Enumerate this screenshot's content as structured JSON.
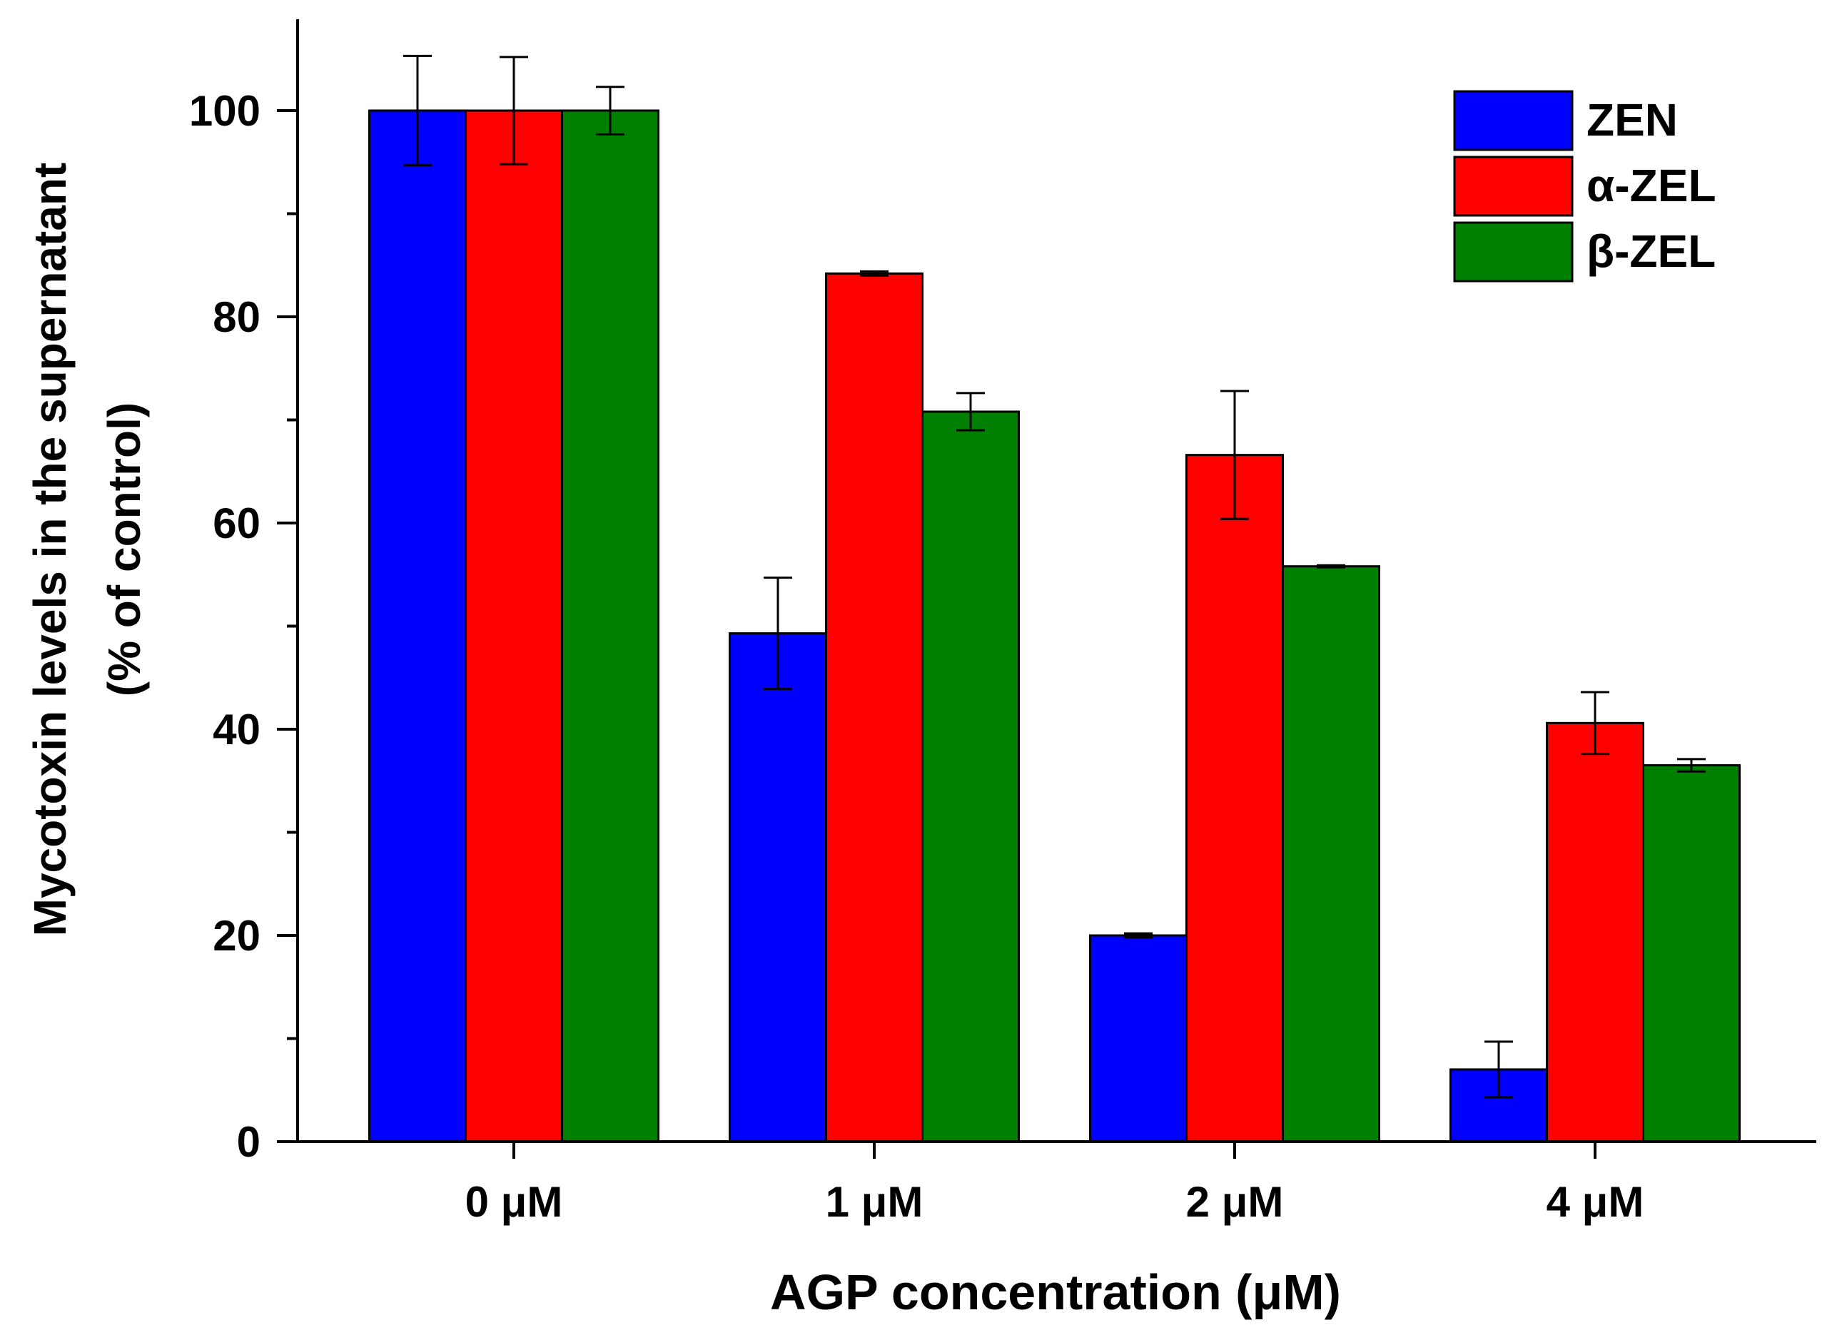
{
  "chart_data": {
    "type": "bar",
    "title": "",
    "xlabel": "AGP concentration (μM)",
    "ylabel_line1": "Mycotoxin levels in the supernatant",
    "ylabel_line2": "(% of control)",
    "categories": [
      "0 μM",
      "1 μM",
      "2 μM",
      "4 μM"
    ],
    "ylim": [
      0,
      108
    ],
    "yticks": [
      0,
      20,
      40,
      60,
      80,
      100
    ],
    "yminor": [
      10,
      30,
      50,
      70,
      90
    ],
    "grid": false,
    "legend_position": "top-right",
    "series": [
      {
        "name": "ZEN",
        "color": "#0000ff",
        "values": [
          100,
          49.3,
          20.0,
          7.0
        ],
        "errors": [
          5.3,
          5.4,
          0.2,
          2.7
        ]
      },
      {
        "name": "α-ZEL",
        "color": "#ff0000",
        "values": [
          100,
          84.2,
          66.6,
          40.6
        ],
        "errors": [
          5.2,
          0.2,
          6.2,
          3.0
        ]
      },
      {
        "name": "β-ZEL",
        "color": "#008000",
        "values": [
          100,
          70.8,
          55.8,
          36.5
        ],
        "errors": [
          2.3,
          1.8,
          0.1,
          0.6
        ]
      }
    ]
  }
}
